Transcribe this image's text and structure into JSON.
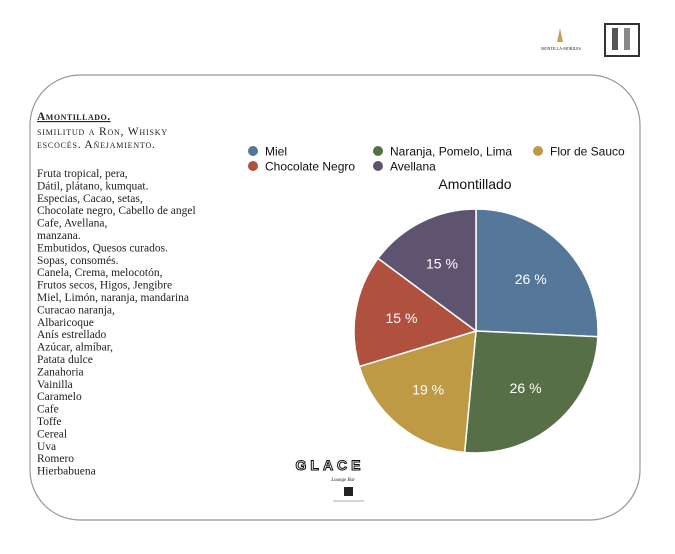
{
  "document": {
    "heading": "Amontillado.",
    "subtitle": [
      "similitud a Ron, Whisky",
      "escocés. Añejamiento."
    ],
    "notes": [
      "Fruta tropical, pera,",
      "Dátil, plátano, kumquat.",
      "Especias, Cacao, setas,",
      "Chocolate negro, Cabello de angel",
      "Cafe, Avellana,",
      "manzana.",
      "Embutidos, Quesos curados.",
      "Sopas, consomés.",
      "Canela, Crema, melocotón,",
      "Frutos secos, Higos, Jengibre",
      "Miel, Limón, naranja, mandarina",
      "Curacao naranja,",
      "Albaricoque",
      "Anís estrellado",
      "Azúcar, almíbar,",
      "Patata dulce",
      "Zanahoria",
      "Vainilla",
      "Caramelo",
      "Cafe",
      "Toffe",
      "Cereal",
      "Uva",
      "Romero",
      "Hierbabuena"
    ],
    "logo_text": "GLACE",
    "logo_tagline": "Lounge Bar",
    "brand": "MONTILLA-MORILES"
  },
  "chart_data": {
    "type": "pie",
    "title": "Amontillado",
    "categories": [
      "Miel",
      "Naranja, Pomelo, Lima",
      "Flor de Sauco",
      "Chocolate Negro",
      "Avellana"
    ],
    "values": [
      26,
      26,
      19,
      15,
      15
    ],
    "value_labels": [
      "26 %",
      "26 %",
      "19 %",
      "15 %",
      "15 %"
    ],
    "colors": [
      "#557799",
      "#566f47",
      "#bd9a43",
      "#b0503f",
      "#5f5470"
    ],
    "legend": "top"
  }
}
